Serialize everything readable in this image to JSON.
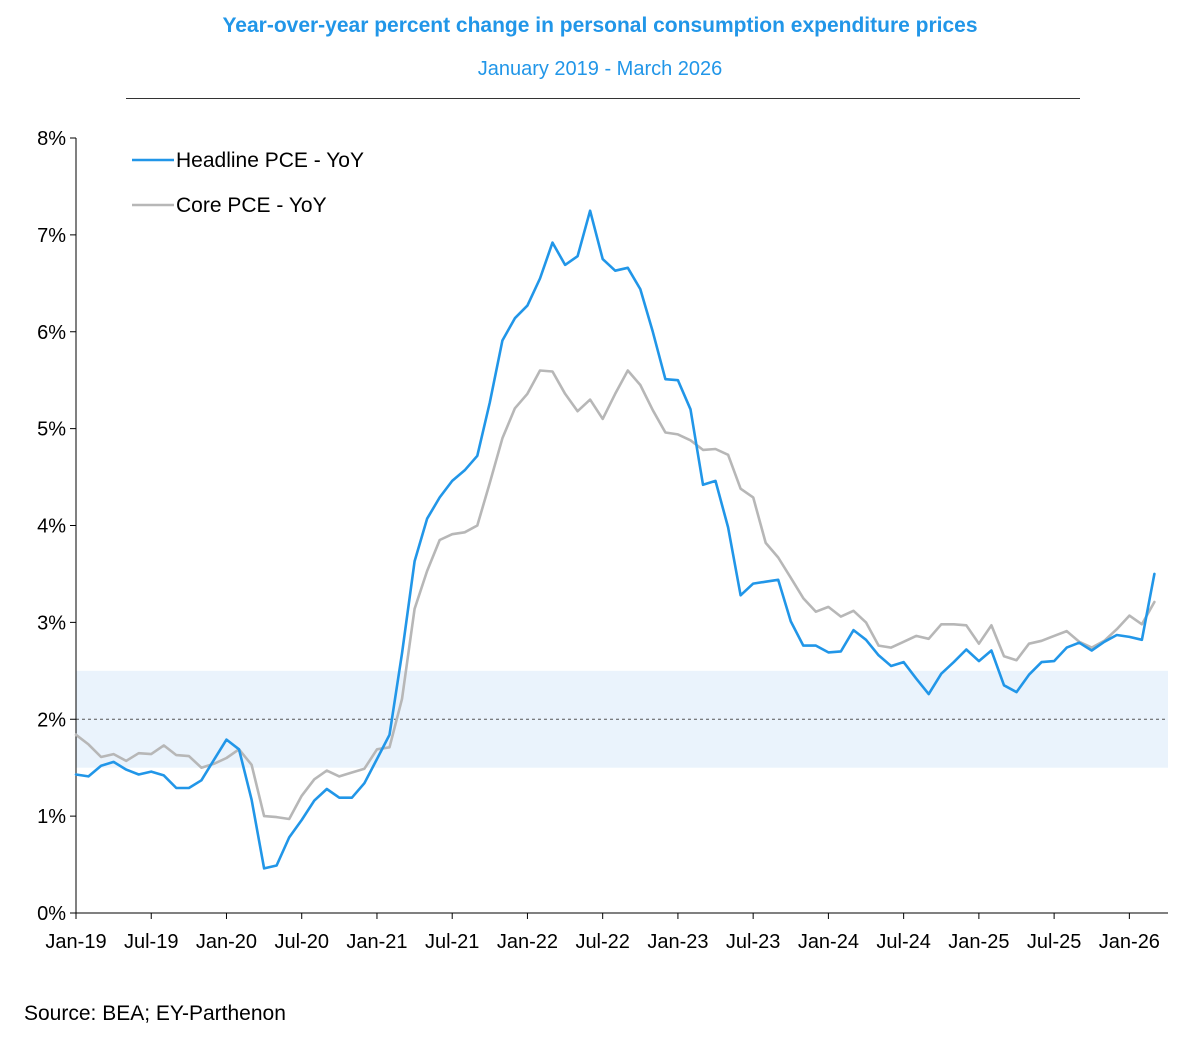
{
  "chart_data": {
    "type": "line",
    "title": "Year-over-year percent change in personal consumption expenditure prices",
    "subtitle": "January 2019 - March 2026",
    "source": "Source: BEA; EY-Parthenon",
    "x_start": "2019-01",
    "x_tick_labels": [
      "Jan-19",
      "Jul-19",
      "Jan-20",
      "Jul-20",
      "Jan-21",
      "Jul-21",
      "Jan-22",
      "Jul-22",
      "Jan-23",
      "Jul-23",
      "Jan-24",
      "Jul-24",
      "Jan-25",
      "Jul-25",
      "Jan-26"
    ],
    "y_tick_labels": [
      "0%",
      "1%",
      "2%",
      "3%",
      "4%",
      "5%",
      "6%",
      "7%",
      "8%"
    ],
    "ylim": [
      0,
      8
    ],
    "target_line": 2.0,
    "target_band": [
      1.5,
      2.5
    ],
    "legend_position": "top-left",
    "grid": false,
    "colors": {
      "headline": "#2196e8",
      "core": "#b7b7b7",
      "band": "#eaf3fc",
      "target_line": "#555555",
      "title": "#2196e8"
    },
    "series": [
      {
        "name": "Headline PCE - YoY",
        "color": "#2196e8",
        "values": [
          1.43,
          1.41,
          1.52,
          1.56,
          1.48,
          1.43,
          1.46,
          1.42,
          1.29,
          1.29,
          1.37,
          1.58,
          1.79,
          1.69,
          1.17,
          0.46,
          0.49,
          0.78,
          0.96,
          1.16,
          1.28,
          1.19,
          1.19,
          1.34,
          1.59,
          1.84,
          2.68,
          3.63,
          4.07,
          4.29,
          4.46,
          4.57,
          4.72,
          5.27,
          5.91,
          6.14,
          6.27,
          6.55,
          6.92,
          6.69,
          6.78,
          7.25,
          6.75,
          6.63,
          6.66,
          6.44,
          6.0,
          5.51,
          5.5,
          5.2,
          4.42,
          4.46,
          3.98,
          3.28,
          3.4,
          3.42,
          3.44,
          3.01,
          2.76,
          2.76,
          2.69,
          2.7,
          2.92,
          2.82,
          2.66,
          2.55,
          2.59,
          2.42,
          2.26,
          2.47,
          2.59,
          2.72,
          2.6,
          2.71,
          2.35,
          2.28,
          2.46,
          2.59,
          2.6,
          2.74,
          2.79,
          2.71,
          2.8,
          2.87,
          2.85,
          2.82,
          3.5
        ]
      },
      {
        "name": "Core PCE - YoY",
        "color": "#b7b7b7",
        "values": [
          1.84,
          1.74,
          1.61,
          1.64,
          1.57,
          1.65,
          1.64,
          1.73,
          1.63,
          1.62,
          1.5,
          1.54,
          1.6,
          1.69,
          1.53,
          1.0,
          0.99,
          0.97,
          1.21,
          1.38,
          1.47,
          1.41,
          1.45,
          1.49,
          1.69,
          1.71,
          2.21,
          3.14,
          3.53,
          3.85,
          3.91,
          3.93,
          4.0,
          4.44,
          4.9,
          5.21,
          5.36,
          5.6,
          5.59,
          5.36,
          5.18,
          5.3,
          5.1,
          5.36,
          5.6,
          5.45,
          5.19,
          4.96,
          4.94,
          4.88,
          4.78,
          4.79,
          4.73,
          4.38,
          4.29,
          3.82,
          3.67,
          3.46,
          3.25,
          3.11,
          3.16,
          3.06,
          3.12,
          3.0,
          2.76,
          2.74,
          2.8,
          2.86,
          2.83,
          2.98,
          2.98,
          2.97,
          2.78,
          2.97,
          2.65,
          2.61,
          2.78,
          2.81,
          2.86,
          2.91,
          2.8,
          2.74,
          2.81,
          2.93,
          3.07,
          2.98,
          3.21
        ]
      }
    ]
  }
}
